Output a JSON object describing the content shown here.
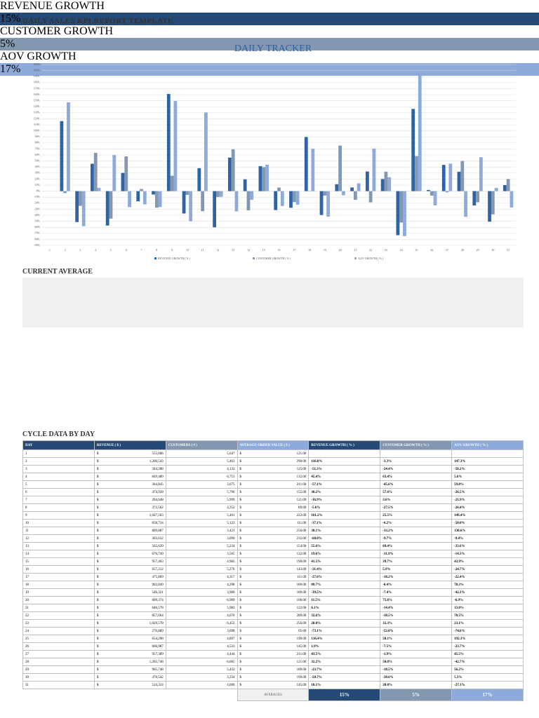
{
  "header": {
    "title": "DAILY SALES KPI REPORT TEMPLATE"
  },
  "chart_data": {
    "type": "bar",
    "title": "DAILY TRACKER",
    "categories": [
      "1",
      "2",
      "3",
      "4",
      "5",
      "6",
      "7",
      "8",
      "9",
      "10",
      "11",
      "12",
      "13",
      "14",
      "15",
      "16",
      "17",
      "18",
      "19",
      "20",
      "21",
      "22",
      "23",
      "24",
      "25",
      "26",
      "27",
      "28",
      "29",
      "30",
      "31"
    ],
    "series": [
      {
        "name": "REVENUE GROWTH ( % )",
        "color": "#2e64a4",
        "values": [
          null,
          116.0,
          -51.3,
          45.4,
          -57.1,
          30.2,
          -16.9,
          -5.6,
          161.2,
          -37.1,
          38.1,
          -60.0,
          55.6,
          19.6,
          41.5,
          -31.4,
          -27.6,
          89.7,
          -39.5,
          11.5,
          6.1,
          32.6,
          20.0,
          -73.1,
          136.4,
          1.9,
          43.5,
          32.2,
          -23.7,
          -50.7,
          10.1
        ]
      },
      {
        "name": "CUSTOMER GROWTH ( % )",
        "color": "#8497b0",
        "values": [
          null,
          -3.3,
          -24.4,
          63.4,
          -45.6,
          57.6,
          3.6,
          -27.5,
          25.5,
          -6.2,
          -33.2,
          -9.7,
          69.4,
          -31.9,
          39.7,
          5.9,
          -18.2,
          -0.4,
          -7.4,
          75.6,
          -14.4,
          -18.5,
          32.3,
          -52.0,
          58.1,
          -7.5,
          -1.9,
          50.0,
          -18.5,
          -38.6,
          20.0
        ]
      },
      {
        "name": "AOV GROWTH ( % )",
        "color": "#8eaadb",
        "values": [
          null,
          147.3,
          -58.2,
          5.6,
          59.8,
          -26.5,
          -21.9,
          -26.4,
          149.4,
          -50.0,
          130.6,
          -9.4,
          -33.6,
          -14.3,
          43.9,
          -24.7,
          -22.4,
          70.3,
          -42.3,
          -6.9,
          13.0,
          70.5,
          23.1,
          -74.6,
          192.3,
          -23.7,
          45.5,
          -42.7,
          56.2,
          5.3,
          -27.1
        ]
      }
    ],
    "ylim": [
      -90,
      210
    ],
    "yticks": [
      {
        "value": -90,
        "label": "-90%"
      },
      {
        "value": -80,
        "label": "-80%"
      },
      {
        "value": -70,
        "label": "-70%"
      },
      {
        "value": -60,
        "label": "-60%"
      },
      {
        "value": -50,
        "label": "-50%"
      },
      {
        "value": -40,
        "label": "-40%"
      },
      {
        "value": -30,
        "label": "-30%"
      },
      {
        "value": -20,
        "label": "-20%"
      },
      {
        "value": -10,
        "label": "-10%"
      },
      {
        "value": 0,
        "label": "0%"
      },
      {
        "value": 10,
        "label": "10%"
      },
      {
        "value": 20,
        "label": "20%"
      },
      {
        "value": 30,
        "label": "30%"
      },
      {
        "value": 40,
        "label": "40%"
      },
      {
        "value": 50,
        "label": "50%"
      },
      {
        "value": 60,
        "label": "60%"
      },
      {
        "value": 70,
        "label": "70%"
      },
      {
        "value": 80,
        "label": "80%"
      },
      {
        "value": 90,
        "label": "90%"
      },
      {
        "value": 100,
        "label": "100%"
      },
      {
        "value": 110,
        "label": "110%"
      },
      {
        "value": 120,
        "label": "120%"
      },
      {
        "value": 130,
        "label": "130%"
      },
      {
        "value": 140,
        "label": "140%"
      },
      {
        "value": 150,
        "label": "150%"
      },
      {
        "value": 160,
        "label": "160%"
      },
      {
        "value": 170,
        "label": "170%"
      },
      {
        "value": 180,
        "label": "180%"
      },
      {
        "value": 190,
        "label": "190%"
      },
      {
        "value": 200,
        "label": "200%"
      },
      {
        "value": 210,
        "label": "210%"
      }
    ],
    "grid": true,
    "legend": "bottom"
  },
  "current_average": {
    "title": "CURRENT AVERAGE",
    "items": [
      {
        "label": "REVENUE GROWTH",
        "value": "15%",
        "color": "#254a75"
      },
      {
        "label": "CUSTOMER GROWTH",
        "value": "5%",
        "color": "#8497b0"
      },
      {
        "label": "AOV GROWTH",
        "value": "17%",
        "color": "#8eaadb"
      }
    ]
  },
  "table": {
    "title": "CYCLE DATA BY DAY",
    "currency": "$",
    "columns": [
      "DAY",
      "REVENUE ( $ )",
      "CUSTOMERS ( # )",
      "AVERAGE ORDER VALUE ( $ )",
      "REVENUE GROWTH ( % )",
      "CUSTOMER GROWTH ( % )",
      "AOV GROWTH ( % )"
    ],
    "column_colors": [
      "#254a75",
      "#254a75",
      "#8497b0",
      "#8eaadb",
      "#254a75",
      "#8497b0",
      "#8eaadb"
    ],
    "rows": [
      [
        "1",
        "555,666",
        "5,647",
        "121.00",
        null,
        null,
        null
      ],
      [
        "2",
        "1,200,543",
        "5,463",
        "290.00",
        "116.0%",
        "-3.3%",
        "147.3%"
      ],
      [
        "3",
        "584,288",
        "4,132",
        "125.00",
        "-51.3%",
        "-24.4%",
        "-58.2%"
      ],
      [
        "4",
        "849,489",
        "6,751",
        "132.00",
        "45.4%",
        "63.4%",
        "5.6%"
      ],
      [
        "5",
        "364,845",
        "3,675",
        "211.00",
        "-57.1%",
        "-45.6%",
        "59.8%"
      ],
      [
        "6",
        "474,928",
        "5,790",
        "155.00",
        "30.2%",
        "57.6%",
        "-26.5%"
      ],
      [
        "7",
        "394,648",
        "5,999",
        "121.00",
        "-16.9%",
        "3.6%",
        "-21.9%"
      ],
      [
        "8",
        "372,562",
        "4,352",
        "89.00",
        "-5.6%",
        "-27.5%",
        "-26.4%"
      ],
      [
        "9",
        "1,047,563",
        "5,461",
        "222.00",
        "161.2%",
        "25.5%",
        "149.4%"
      ],
      [
        "10",
        "658,734",
        "5,123",
        "111.00",
        "-37.1%",
        "-6.2%",
        "-50.0%"
      ],
      [
        "11",
        "809,887",
        "3,421",
        "256.00",
        "38.1%",
        "-33.2%",
        "130.6%"
      ],
      [
        "12",
        "363,632",
        "3,090",
        "232.00",
        "-60.0%",
        "-9.7%",
        "-9.4%"
      ],
      [
        "13",
        "565,639",
        "5,234",
        "154.00",
        "55.6%",
        "69.4%",
        "-33.6%"
      ],
      [
        "14",
        "676,749",
        "3,565",
        "132.00",
        "19.6%",
        "-31.9%",
        "-14.3%"
      ],
      [
        "15",
        "957,463",
        "4,982",
        "190.00",
        "41.5%",
        "39.7%",
        "43.9%"
      ],
      [
        "16",
        "657,212",
        "5,276",
        "143.00",
        "-31.4%",
        "5.9%",
        "-24.7%"
      ],
      [
        "17",
        "475,869",
        "4,317",
        "111.00",
        "-27.6%",
        "-18.2%",
        "-22.4%"
      ],
      [
        "18",
        "902,849",
        "4,298",
        "189.00",
        "89.7%",
        "-0.4%",
        "70.3%"
      ],
      [
        "19",
        "546,321",
        "3,980",
        "189.00",
        "-39.5%",
        "-7.4%",
        "-42.3%"
      ],
      [
        "20",
        "609,374",
        "6,989",
        "100.00",
        "11.5%",
        "75.6%",
        "-6.9%"
      ],
      [
        "21",
        "646,578",
        "5,982",
        "122.00",
        "6.1%",
        "-14.4%",
        "13.0%"
      ],
      [
        "22",
        "857,664",
        "4,676",
        "289.00",
        "32.6%",
        "-18.5%",
        "70.5%"
      ],
      [
        "23",
        "1,029,578",
        "6,452",
        "256.00",
        "20.0%",
        "32.3%",
        "23.1%"
      ],
      [
        "24",
        "276,889",
        "3,098",
        "65.00",
        "-73.1%",
        "-52.0%",
        "-74.6%"
      ],
      [
        "25",
        "654,298",
        "4,897",
        "190.00",
        "136.4%",
        "58.1%",
        "192.3%"
      ],
      [
        "26",
        "666,987",
        "4,532",
        "145.00",
        "1.9%",
        "-7.5%",
        "-23.7%"
      ],
      [
        "27",
        "957,389",
        "4,444",
        "211.00",
        "43.5%",
        "-1.9%",
        "45.5%"
      ],
      [
        "28",
        "1,265,748",
        "6,665",
        "121.00",
        "32.2%",
        "50.0%",
        "-42.7%"
      ],
      [
        "29",
        "965,748",
        "5,432",
        "189.00",
        "-23.7%",
        "-18.5%",
        "56.2%"
      ],
      [
        "30",
        "476,542",
        "3,334",
        "199.00",
        "-50.7%",
        "-38.6%",
        "5.3%"
      ],
      [
        "31",
        "524,324",
        "4,000",
        "145.00",
        "10.1%",
        "20.0%",
        "-27.1%"
      ]
    ],
    "averages_label": "AVERAGES",
    "averages": [
      "15%",
      "5%",
      "17%"
    ]
  }
}
